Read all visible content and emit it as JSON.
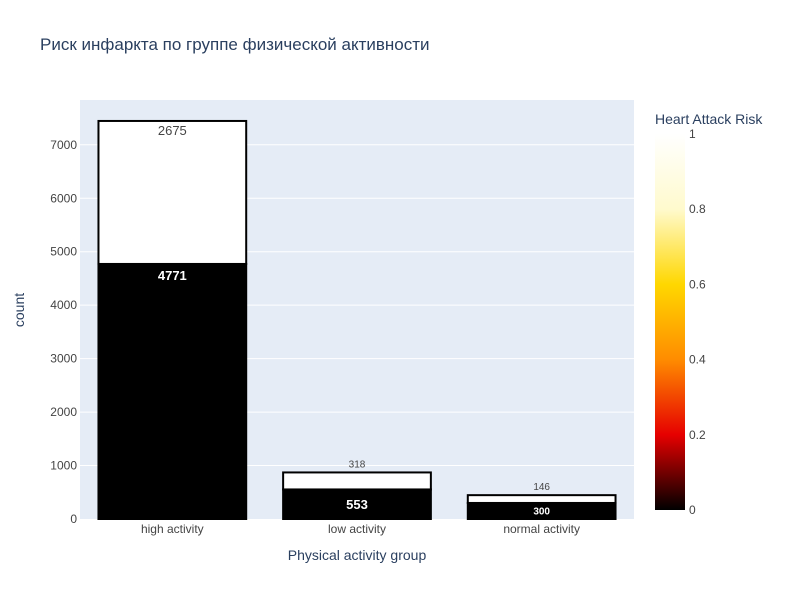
{
  "chart_data": {
    "type": "bar",
    "stacked": true,
    "title": "Риск инфаркта по группе физической активности",
    "xlabel": "Physical activity group",
    "ylabel": "count",
    "categories": [
      "high activity",
      "low activity",
      "normal activity"
    ],
    "series": [
      {
        "name": "0",
        "risk_value": 0,
        "values": [
          4771,
          553,
          300
        ],
        "color": "#000000"
      },
      {
        "name": "1",
        "risk_value": 1,
        "values": [
          2675,
          318,
          146
        ],
        "color": "#ffffff"
      }
    ],
    "ylim": [
      0,
      7838
    ],
    "yticks": [
      0,
      1000,
      2000,
      3000,
      4000,
      5000,
      6000,
      7000
    ],
    "colorbar": {
      "title": "Heart Attack Risk",
      "range": [
        0,
        1
      ],
      "ticks": [
        "0",
        "0.2",
        "0.4",
        "0.6",
        "0.8",
        "1"
      ],
      "colors": [
        "#000000",
        "#e60000",
        "#ff8c00",
        "#ffd700",
        "#fffacd",
        "#ffffff"
      ]
    },
    "colors": {
      "plot_bg": "#e5ecf6",
      "gridline": "#ffffff",
      "text": "#2a3f5f",
      "tick_text": "#444444",
      "bar_outline": "#000000"
    }
  }
}
